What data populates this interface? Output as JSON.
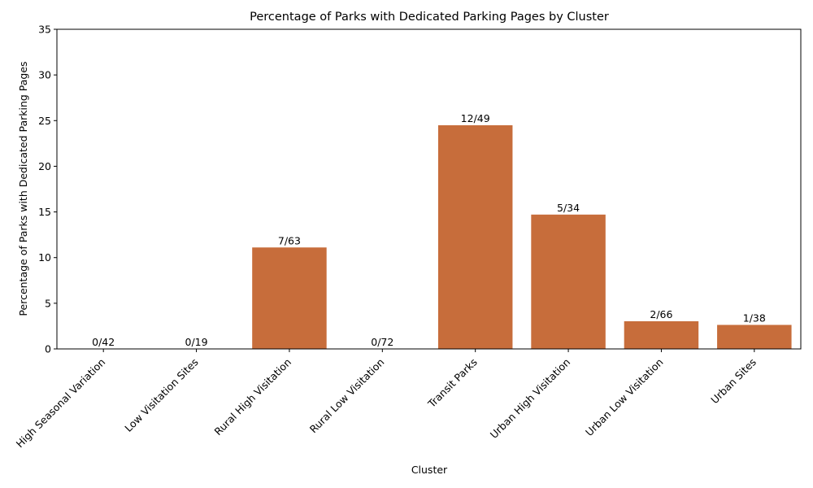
{
  "chart_data": {
    "type": "bar",
    "title": "Percentage of Parks with Dedicated Parking Pages by Cluster",
    "xlabel": "Cluster",
    "ylabel": "Percentage of Parks with Dedicated Parking Pages",
    "ylim": [
      0,
      35
    ],
    "yticks": [
      0,
      5,
      10,
      15,
      20,
      25,
      30,
      35
    ],
    "grid": false,
    "bar_color": "#c76d3b",
    "categories": [
      "High Seasonal Variation",
      "Low Visitation Sites",
      "Rural High Visitation",
      "Rural Low Visitation",
      "Transit Parks",
      "Urban High Visitation",
      "Urban Low Visitation",
      "Urban Sites"
    ],
    "values": [
      0,
      0,
      11.11,
      0,
      24.49,
      14.71,
      3.03,
      2.63
    ],
    "data_labels": [
      "0/42",
      "0/19",
      "7/63",
      "0/72",
      "12/49",
      "5/34",
      "2/66",
      "1/38"
    ]
  }
}
